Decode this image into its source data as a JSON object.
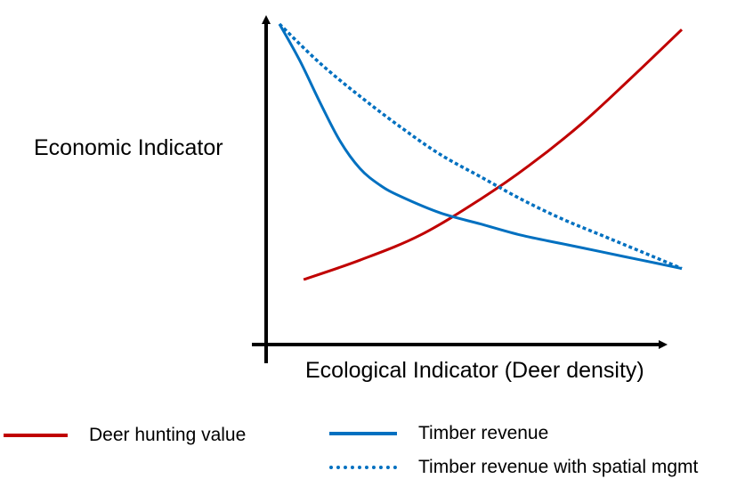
{
  "chart_data": {
    "type": "line",
    "title": "",
    "xlabel": "Ecological Indicator (Deer density)",
    "ylabel": "Economic Indicator",
    "xlim": [
      0,
      1
    ],
    "ylim": [
      0,
      1
    ],
    "grid": false,
    "legend_position": "bottom",
    "series": [
      {
        "name": "Deer hunting value",
        "color": "#c00000",
        "style": "solid",
        "x": [
          0.06,
          0.2,
          0.35,
          0.5,
          0.62,
          0.75,
          0.87,
          1.0
        ],
        "y": [
          0.08,
          0.15,
          0.24,
          0.37,
          0.49,
          0.64,
          0.8,
          0.98
        ]
      },
      {
        "name": "Timber revenue",
        "color": "#0070c0",
        "style": "solid",
        "x": [
          0.0,
          0.05,
          0.1,
          0.15,
          0.2,
          0.25,
          0.3,
          0.4,
          0.5,
          0.6,
          0.7,
          0.8,
          0.9,
          1.0
        ],
        "y": [
          1.0,
          0.87,
          0.72,
          0.58,
          0.48,
          0.42,
          0.38,
          0.32,
          0.28,
          0.24,
          0.21,
          0.18,
          0.15,
          0.12
        ]
      },
      {
        "name": "Timber revenue with spatial mgmt",
        "color": "#0070c0",
        "style": "dotted",
        "x": [
          0.0,
          0.1,
          0.2,
          0.3,
          0.4,
          0.5,
          0.6,
          0.7,
          0.8,
          0.9,
          1.0
        ],
        "y": [
          1.0,
          0.86,
          0.74,
          0.63,
          0.53,
          0.45,
          0.37,
          0.3,
          0.24,
          0.18,
          0.12
        ]
      }
    ]
  }
}
